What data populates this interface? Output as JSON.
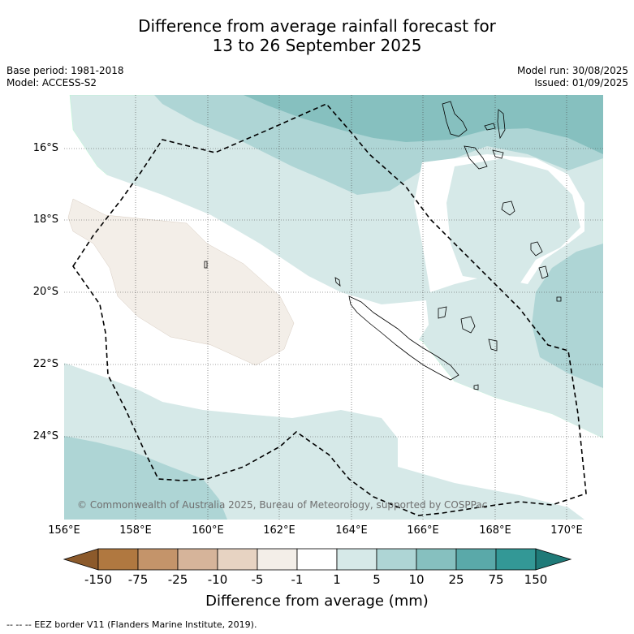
{
  "title_line1": "Difference from average rainfall forecast for",
  "title_line2": "13 to 26 September 2025",
  "base_period": "Base period: 1981-2018",
  "model": "Model: ACCESS-S2",
  "model_run": "Model run: 30/08/2025",
  "issued": "Issued: 01/09/2025",
  "lat_labels": [
    "16°S",
    "18°S",
    "20°S",
    "22°S",
    "24°S"
  ],
  "lon_labels": [
    "156°E",
    "158°E",
    "160°E",
    "162°E",
    "164°E",
    "166°E",
    "168°E",
    "170°E"
  ],
  "copyright": "© Commonwealth of Australia 2025, Bureau of Meteorology, supported by COSPPac",
  "colorbar": {
    "ticks": [
      "-150",
      "-75",
      "-25",
      "-10",
      "-5",
      "-1",
      "1",
      "5",
      "10",
      "25",
      "75",
      "150"
    ],
    "title": "Difference from average (mm)",
    "colors": [
      "#8c5a2b",
      "#b07840",
      "#c4946a",
      "#d6b49a",
      "#e7d3c2",
      "#f3eee8",
      "#ffffff",
      "#d6e9e8",
      "#aed5d5",
      "#86c0bf",
      "#5aa9a9",
      "#339896",
      "#1f7a78"
    ]
  },
  "legend_footer": "--  --  -- EEZ border V11 (Flanders Marine Institute, 2019)."
}
